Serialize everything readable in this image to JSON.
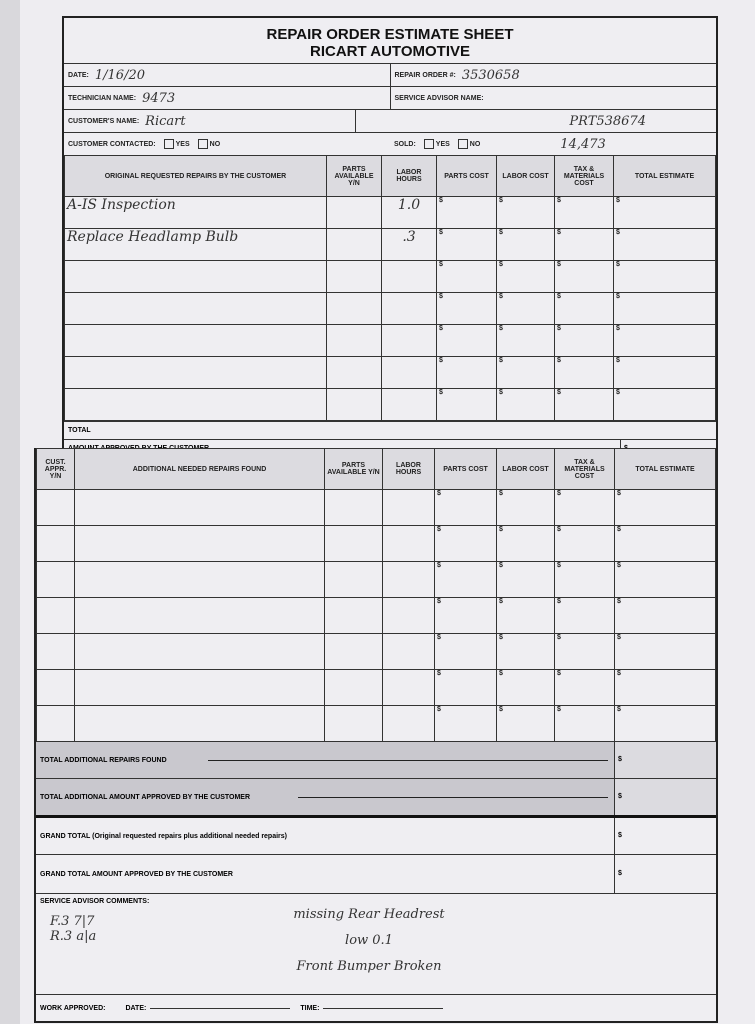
{
  "header": {
    "title": "REPAIR ORDER ESTIMATE SHEET",
    "subtitle": "RICART AUTOMOTIVE",
    "date_label": "DATE:",
    "date_value": "1/16/20",
    "repair_order_label": "REPAIR ORDER #:",
    "repair_order_value": "3530658",
    "technician_label": "TECHNICIAN NAME:",
    "technician_value": "9473",
    "advisor_label": "SERVICE ADVISOR NAME:",
    "customer_label": "CUSTOMER'S NAME:",
    "customer_value": "Ricart",
    "vehicle_note": "PRT538674",
    "mileage_note": "14,473",
    "contacted_label": "CUSTOMER CONTACTED:",
    "sold_label": "SOLD:",
    "yes": "YES",
    "no": "NO"
  },
  "original": {
    "columns": [
      "ORIGINAL REQUESTED REPAIRS BY THE CUSTOMER",
      "PARTS AVAILABLE Y/N",
      "LABOR HOURS",
      "PARTS COST",
      "LABOR COST",
      "TAX & MATERIALS COST",
      "TOTAL ESTIMATE"
    ],
    "rows": [
      {
        "desc": "A-IS Inspection",
        "hours": "1.0"
      },
      {
        "desc": "Replace Headlamp Bulb",
        "hours": ".3"
      },
      {
        "desc": "",
        "hours": ""
      },
      {
        "desc": "",
        "hours": ""
      },
      {
        "desc": "",
        "hours": ""
      },
      {
        "desc": "",
        "hours": ""
      },
      {
        "desc": "",
        "hours": ""
      }
    ],
    "total_label": "TOTAL",
    "approved_label": "AMOUNT APPROVED BY THE CUSTOMER"
  },
  "additional": {
    "columns": [
      "CUST. APPR. Y/N",
      "ADDITIONAL NEEDED REPAIRS FOUND",
      "PARTS AVAILABLE Y/N",
      "LABOR HOURS",
      "PARTS COST",
      "LABOR COST",
      "TAX & MATERIALS COST",
      "TOTAL ESTIMATE"
    ],
    "row_count": 7,
    "total_found_label": "TOTAL ADDITIONAL REPAIRS FOUND",
    "total_approved_label": "TOTAL ADDITIONAL AMOUNT APPROVED BY THE CUSTOMER"
  },
  "grand": {
    "total_label": "GRAND TOTAL (Original requested repairs plus additional needed repairs)",
    "approved_label": "GRAND TOTAL AMOUNT APPROVED BY THE CUSTOMER"
  },
  "currency": "$",
  "comments": {
    "label": "SERVICE ADVISOR COMMENTS:",
    "left_notes": [
      "F.3  7|7",
      "R.3  a|a"
    ],
    "right_notes": [
      "missing Rear Headrest",
      "low 0.1",
      "Front Bumper Broken"
    ]
  },
  "footer": {
    "work_approved": "WORK APPROVED:",
    "date": "DATE:",
    "time": "TIME:"
  }
}
